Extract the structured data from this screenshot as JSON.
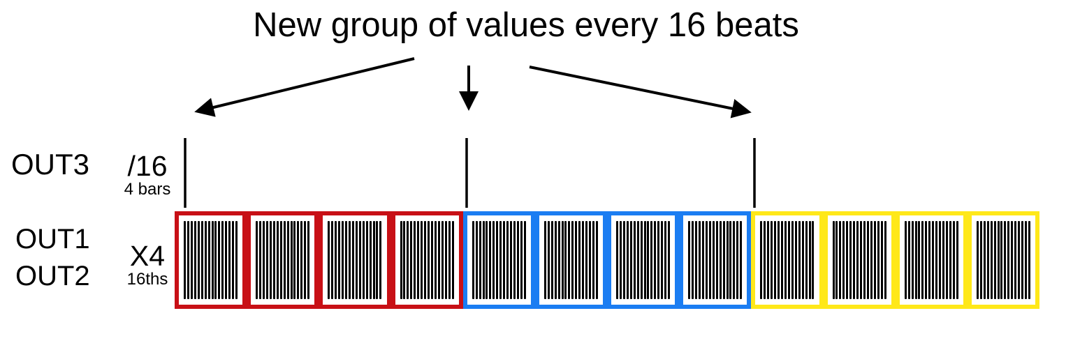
{
  "title": "New group of values every 16 beats",
  "outputs": {
    "out3": {
      "label": "OUT3",
      "rate": "/16",
      "rate_note": "4 bars"
    },
    "out1": {
      "label": "OUT1"
    },
    "out2": {
      "label": "OUT2"
    },
    "out12": {
      "rate": "X4",
      "rate_note": "16ths"
    }
  },
  "sequence": {
    "beats_per_group": 16,
    "bars_per_group": 4,
    "stripes_per_bar": 16,
    "groups": [
      {
        "name": "group-1-red",
        "color": "#c81016"
      },
      {
        "name": "group-2-blue",
        "color": "#1b7df2"
      },
      {
        "name": "group-3-yellow",
        "color": "#ffe819"
      }
    ]
  },
  "colors": {
    "stripe": "#000000",
    "arrow": "#000000",
    "background": "#ffffff"
  }
}
